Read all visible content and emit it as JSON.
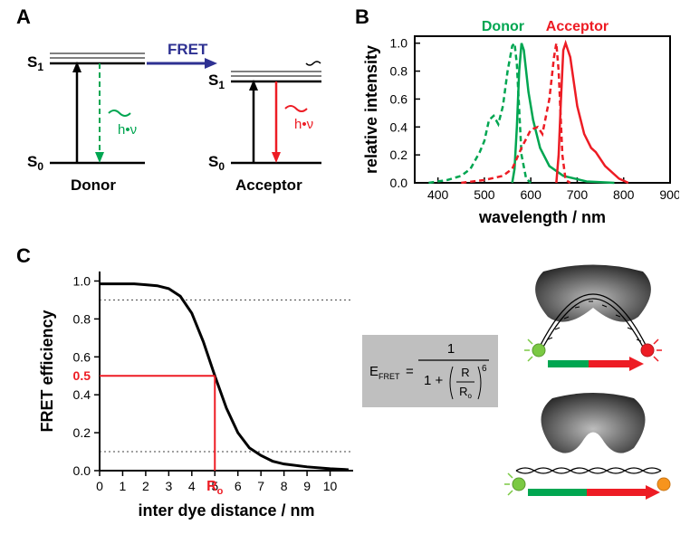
{
  "panelA": {
    "label": "A",
    "donor": {
      "name": "Donor",
      "s0": "S",
      "s0_sub": "0",
      "s1": "S",
      "s1_sub": "1",
      "hv": "h•ν",
      "color": "#00a651"
    },
    "acceptor": {
      "name": "Acceptor",
      "s0": "S",
      "s0_sub": "0",
      "s1": "S",
      "s1_sub": "1",
      "hv": "h•ν",
      "color": "#ed1c24"
    },
    "fret_label": "FRET",
    "fret_color": "#2e3192",
    "line_color": "#000000"
  },
  "panelB": {
    "label": "B",
    "xlabel": "wavelength / nm",
    "ylabel": "relative intensity",
    "donor_label": "Donor",
    "acceptor_label": "Acceptor",
    "xlim": [
      350,
      900
    ],
    "ylim": [
      0,
      1.05
    ],
    "xticks": [
      400,
      500,
      600,
      700,
      800,
      900
    ],
    "yticks": [
      0.0,
      0.2,
      0.4,
      0.6,
      0.8,
      1.0
    ],
    "axis_color": "#000000",
    "donor_color": "#00a651",
    "acceptor_color": "#ed1c24",
    "label_fontsize": 18,
    "tick_fontsize": 14,
    "line_width": 2.5,
    "donor_exc": [
      [
        380,
        0.0
      ],
      [
        420,
        0.02
      ],
      [
        450,
        0.05
      ],
      [
        470,
        0.1
      ],
      [
        490,
        0.22
      ],
      [
        500,
        0.3
      ],
      [
        510,
        0.45
      ],
      [
        520,
        0.48
      ],
      [
        530,
        0.42
      ],
      [
        540,
        0.55
      ],
      [
        550,
        0.8
      ],
      [
        560,
        0.98
      ],
      [
        565,
        1.0
      ],
      [
        570,
        0.85
      ],
      [
        580,
        0.2
      ],
      [
        590,
        0.03
      ],
      [
        600,
        0.0
      ]
    ],
    "donor_em": [
      [
        560,
        0.0
      ],
      [
        565,
        0.1
      ],
      [
        570,
        0.4
      ],
      [
        575,
        0.8
      ],
      [
        580,
        1.0
      ],
      [
        585,
        0.95
      ],
      [
        595,
        0.65
      ],
      [
        605,
        0.45
      ],
      [
        620,
        0.25
      ],
      [
        640,
        0.12
      ],
      [
        670,
        0.05
      ],
      [
        720,
        0.01
      ],
      [
        780,
        0.0
      ]
    ],
    "acceptor_exc": [
      [
        450,
        0.0
      ],
      [
        500,
        0.02
      ],
      [
        540,
        0.05
      ],
      [
        560,
        0.1
      ],
      [
        580,
        0.25
      ],
      [
        600,
        0.38
      ],
      [
        615,
        0.4
      ],
      [
        625,
        0.35
      ],
      [
        640,
        0.6
      ],
      [
        650,
        0.9
      ],
      [
        655,
        1.0
      ],
      [
        660,
        0.8
      ],
      [
        668,
        0.2
      ],
      [
        675,
        0.02
      ],
      [
        685,
        0.0
      ]
    ],
    "acceptor_em": [
      [
        655,
        0.0
      ],
      [
        660,
        0.2
      ],
      [
        665,
        0.6
      ],
      [
        670,
        0.95
      ],
      [
        675,
        1.0
      ],
      [
        685,
        0.9
      ],
      [
        700,
        0.55
      ],
      [
        715,
        0.35
      ],
      [
        730,
        0.25
      ],
      [
        740,
        0.22
      ],
      [
        760,
        0.12
      ],
      [
        790,
        0.03
      ],
      [
        810,
        0.0
      ]
    ]
  },
  "panelC": {
    "label": "C",
    "xlabel": "inter dye distance / nm",
    "ylabel": "FRET efficiency",
    "xlim": [
      0,
      11
    ],
    "ylim": [
      0,
      1.05
    ],
    "xticks": [
      0,
      1,
      2,
      3,
      4,
      5,
      6,
      7,
      8,
      9,
      10
    ],
    "yticks": [
      0.0,
      0.2,
      0.4,
      0.6,
      0.8,
      1.0
    ],
    "R0_label": "R",
    "R0_sub": "o",
    "half_label": "0.5",
    "axis_color": "#000000",
    "curve_color": "#000000",
    "guide_color": "#ed1c24",
    "dash_color": "#404040",
    "label_fontsize": 18,
    "tick_fontsize": 14,
    "line_width": 3,
    "R0": 5,
    "curve": [
      [
        0,
        0.985
      ],
      [
        1,
        0.985
      ],
      [
        1.5,
        0.985
      ],
      [
        2,
        0.98
      ],
      [
        2.5,
        0.975
      ],
      [
        3.0,
        0.96
      ],
      [
        3.5,
        0.92
      ],
      [
        4.0,
        0.83
      ],
      [
        4.5,
        0.68
      ],
      [
        5.0,
        0.5
      ],
      [
        5.5,
        0.33
      ],
      [
        6.0,
        0.2
      ],
      [
        6.5,
        0.12
      ],
      [
        7.0,
        0.08
      ],
      [
        7.5,
        0.05
      ],
      [
        8.0,
        0.035
      ],
      [
        9.0,
        0.02
      ],
      [
        10.0,
        0.01
      ],
      [
        10.8,
        0.005
      ]
    ],
    "eq": {
      "bg": "#bfbfbf",
      "text_color": "#000000",
      "lhs": "E",
      "lhs_sub": "FRET",
      "rhs_num": "1",
      "rhs_den_pre": "1 + ",
      "R": "R",
      "Ro": "R",
      "Ro_sub": "o",
      "power": "6"
    },
    "cartoon": {
      "protein_fill_outer": "#1a1a1a",
      "protein_fill_inner": "#bdbdbd",
      "dna_color": "#000000",
      "donor_dye": "#7ac943",
      "acceptor_dye_hi": "#ed1c24",
      "acceptor_dye_lo": "#f7941d",
      "arrow_green": "#00a651",
      "arrow_red": "#ed1c24"
    }
  }
}
